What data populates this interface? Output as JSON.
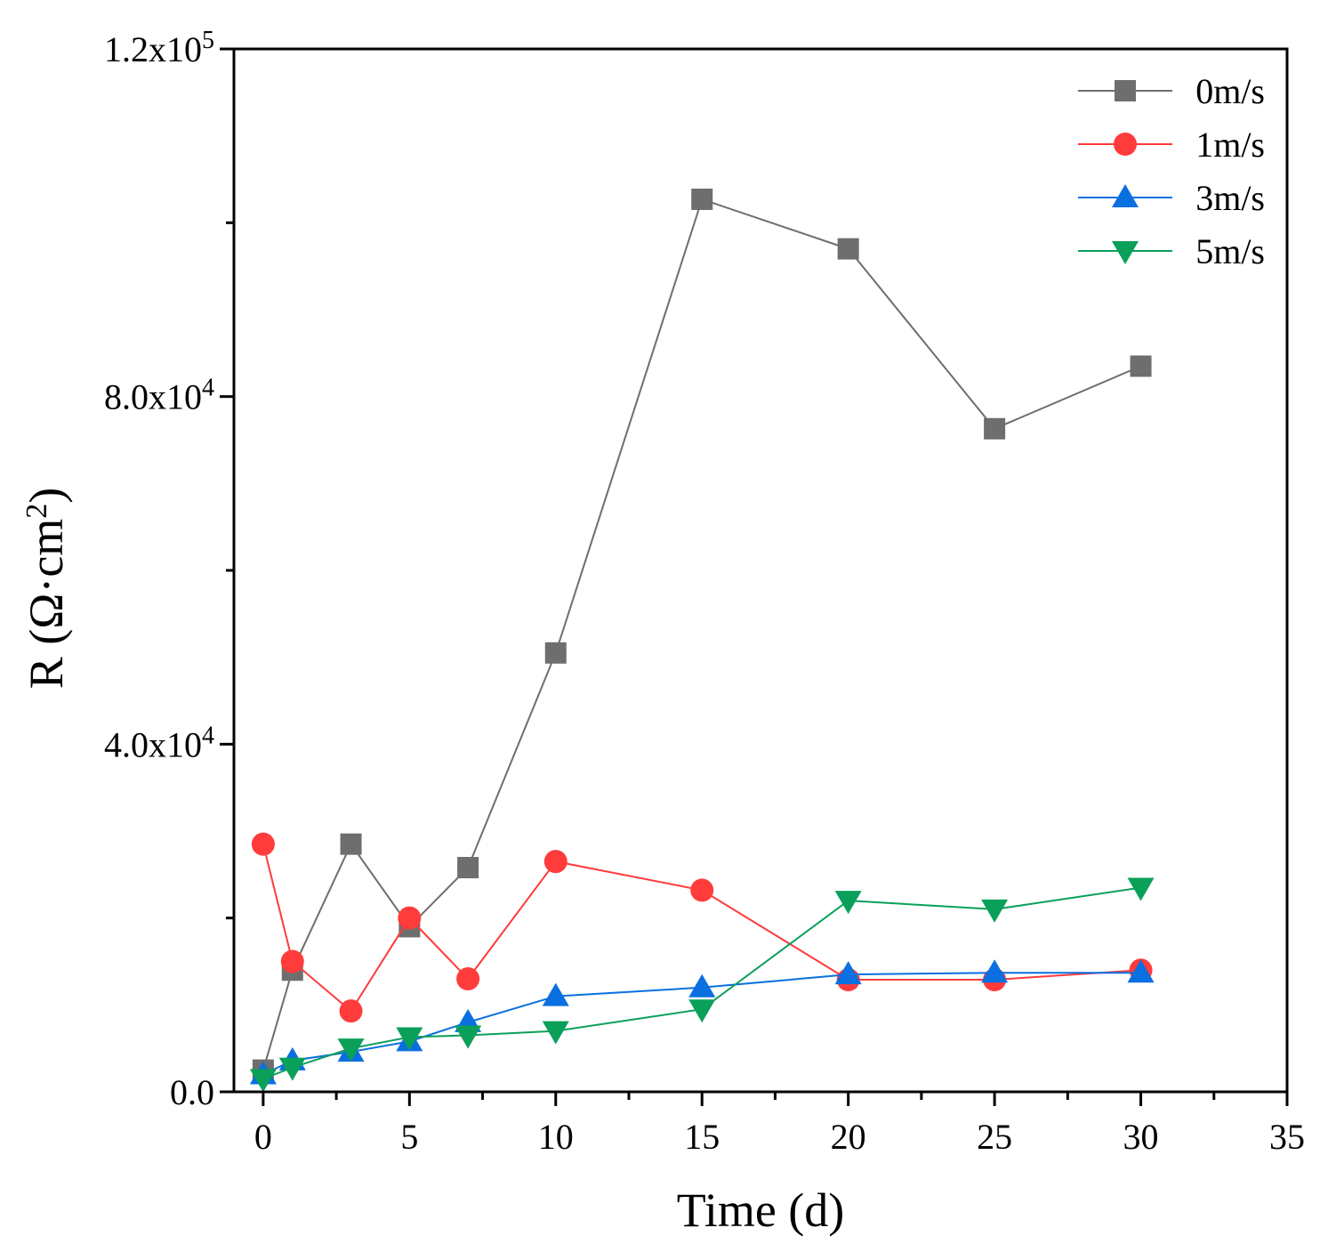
{
  "chart_data": {
    "type": "line",
    "title": "",
    "xlabel": "Time (d)",
    "ylabel_prefix": "R (Ω·cm",
    "ylabel_sup": "2",
    "ylabel_suffix": ")",
    "xlim": [
      -1,
      35
    ],
    "ylim": [
      0,
      120000
    ],
    "xticks": [
      0,
      5,
      10,
      15,
      20,
      25,
      30,
      35
    ],
    "xtick_labels": [
      "0",
      "5",
      "10",
      "15",
      "20",
      "25",
      "30",
      "35"
    ],
    "yticks": [
      0,
      40000,
      80000,
      120000
    ],
    "ytick_labels": [
      {
        "mantissa": "0.0",
        "exponent": ""
      },
      {
        "mantissa": "4.0x10",
        "exponent": "4"
      },
      {
        "mantissa": "8.0x10",
        "exponent": "4"
      },
      {
        "mantissa": "1.2x10",
        "exponent": "5"
      }
    ],
    "grid": false,
    "legend_position": "top-right",
    "series": [
      {
        "name": "0m/s",
        "color": "#6e6e6e",
        "marker": "square",
        "x": [
          0,
          1,
          3,
          5,
          7,
          10,
          15,
          20,
          25,
          30
        ],
        "y": [
          2500,
          14000,
          28500,
          19000,
          25800,
          50500,
          102700,
          97000,
          76300,
          83500
        ]
      },
      {
        "name": "1m/s",
        "color": "#ff3b3b",
        "marker": "circle",
        "x": [
          0,
          1,
          3,
          5,
          7,
          10,
          15,
          20,
          25,
          30
        ],
        "y": [
          28500,
          15000,
          9300,
          20000,
          13000,
          26500,
          23200,
          12900,
          12900,
          14000
        ]
      },
      {
        "name": "3m/s",
        "color": "#0a6fe0",
        "marker": "triangle-up",
        "x": [
          0,
          1,
          3,
          5,
          7,
          10,
          15,
          20,
          25,
          30
        ],
        "y": [
          2000,
          3600,
          4600,
          5800,
          8000,
          11000,
          12000,
          13500,
          13700,
          13700
        ]
      },
      {
        "name": "5m/s",
        "color": "#0aa05a",
        "marker": "triangle-down",
        "x": [
          0,
          1,
          3,
          5,
          7,
          10,
          15,
          20,
          25,
          30
        ],
        "y": [
          1500,
          2800,
          5000,
          6300,
          6500,
          7000,
          9500,
          22000,
          21000,
          23500
        ]
      }
    ]
  }
}
